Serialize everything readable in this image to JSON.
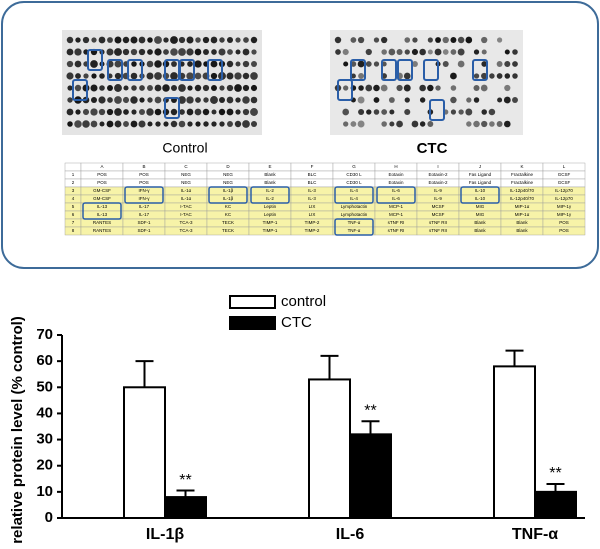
{
  "panel": {
    "labels": [
      "Control",
      "CTC"
    ],
    "table": {
      "header": [
        "",
        "A",
        "B",
        "C",
        "D",
        "E",
        "F",
        "G",
        "H",
        "I",
        "J",
        "K",
        "L"
      ],
      "rows": [
        [
          "1",
          "POS",
          "POS",
          "NEG",
          "NEG",
          "Blank",
          "BLC",
          "CD30 L",
          "Eotaxin",
          "Eotaxin-2",
          "Fas Ligand",
          "Fractalkine",
          "GCSF"
        ],
        [
          "2",
          "POS",
          "POS",
          "NEG",
          "NEG",
          "Blank",
          "BLC",
          "CD30 L",
          "Eotaxin",
          "Eotaxin-2",
          "Fas Ligand",
          "Fractalkine",
          "GCSF"
        ],
        [
          "3",
          "GM-CSF",
          "IFN-γ",
          "IL-1α",
          "IL-1β",
          "IL-2",
          "IL-3",
          "IL-4",
          "IL-6",
          "IL-9",
          "IL-10",
          "IL-12p40/70",
          "IL-12p70"
        ],
        [
          "4",
          "GM-CSF",
          "IFN-γ",
          "IL-1α",
          "IL-1β",
          "IL-2",
          "IL-3",
          "IL-4",
          "IL-6",
          "IL-9",
          "IL-10",
          "IL-12p40/70",
          "IL-12p70"
        ],
        [
          "5",
          "IL-13",
          "IL-17",
          "I-TAC",
          "KC",
          "Leptin",
          "LIX",
          "Lymphotactin",
          "MCP-1",
          "MCSF",
          "MIG",
          "MIP-1α",
          "MIP-1γ"
        ],
        [
          "6",
          "IL-13",
          "IL-17",
          "I-TAC",
          "KC",
          "Leptin",
          "LIX",
          "Lymphotactin",
          "MCP-1",
          "MCSF",
          "MIG",
          "MIP-1α",
          "MIP-1γ"
        ],
        [
          "7",
          "RANTES",
          "SDF-1",
          "TCA-3",
          "TECK",
          "TIMP-1",
          "TIMP-2",
          "TNF-α",
          "sTNF RI",
          "sTNF RII",
          "Blank",
          "Blank",
          "POS"
        ],
        [
          "8",
          "RANTES",
          "SDF-1",
          "TCA-3",
          "TECK",
          "TIMP-1",
          "TIMP-2",
          "TNF-α",
          "sTNF RI",
          "sTNF RII",
          "Blank",
          "Blank",
          "POS"
        ]
      ]
    }
  },
  "chart_data": {
    "type": "bar",
    "y_label": "relative protein level (% control)",
    "categories": [
      "IL-1β",
      "IL-6",
      "TNF-α"
    ],
    "series": [
      {
        "name": "control",
        "color": "#ffffff",
        "values": [
          50,
          53,
          58
        ],
        "errors": [
          10,
          9,
          6
        ]
      },
      {
        "name": "CTC",
        "color": "#000000",
        "values": [
          8,
          32,
          10
        ],
        "errors": [
          2.5,
          5,
          3
        ],
        "significance": [
          "**",
          "**",
          "**"
        ]
      }
    ],
    "ylim": [
      0,
      70
    ],
    "yticks": [
      0,
      10,
      20,
      30,
      40,
      50,
      60,
      70
    ]
  }
}
